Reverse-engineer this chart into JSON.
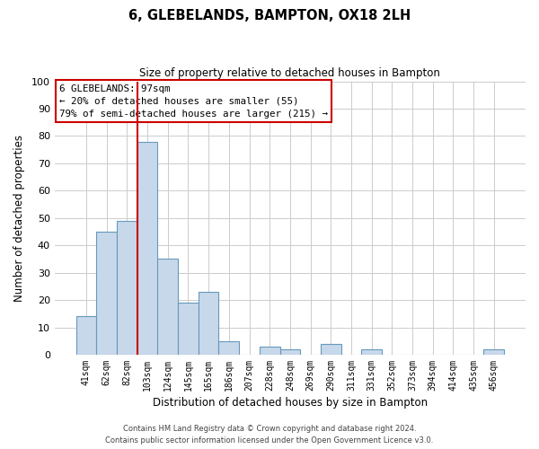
{
  "title": "6, GLEBELANDS, BAMPTON, OX18 2LH",
  "subtitle": "Size of property relative to detached houses in Bampton",
  "xlabel": "Distribution of detached houses by size in Bampton",
  "ylabel": "Number of detached properties",
  "footnote1": "Contains HM Land Registry data © Crown copyright and database right 2024.",
  "footnote2": "Contains public sector information licensed under the Open Government Licence v3.0.",
  "bar_labels": [
    "41sqm",
    "62sqm",
    "82sqm",
    "103sqm",
    "124sqm",
    "145sqm",
    "165sqm",
    "186sqm",
    "207sqm",
    "228sqm",
    "248sqm",
    "269sqm",
    "290sqm",
    "311sqm",
    "331sqm",
    "352sqm",
    "373sqm",
    "394sqm",
    "414sqm",
    "435sqm",
    "456sqm"
  ],
  "bar_values": [
    14,
    45,
    49,
    78,
    35,
    19,
    23,
    5,
    0,
    3,
    2,
    0,
    4,
    0,
    2,
    0,
    0,
    0,
    0,
    0,
    2
  ],
  "bar_color": "#c8d8eb",
  "bar_edge_color": "#6699bb",
  "vline_color": "#cc0000",
  "vline_x": 3.0,
  "annotation_text": "6 GLEBELANDS: 97sqm\n← 20% of detached houses are smaller (55)\n79% of semi-detached houses are larger (215) →",
  "annotation_box_color": "#ffffff",
  "annotation_box_edgecolor": "#cc0000",
  "ylim": [
    0,
    100
  ],
  "yticks": [
    0,
    10,
    20,
    30,
    40,
    50,
    60,
    70,
    80,
    90,
    100
  ],
  "bg_color": "#ffffff",
  "grid_color": "#cccccc"
}
